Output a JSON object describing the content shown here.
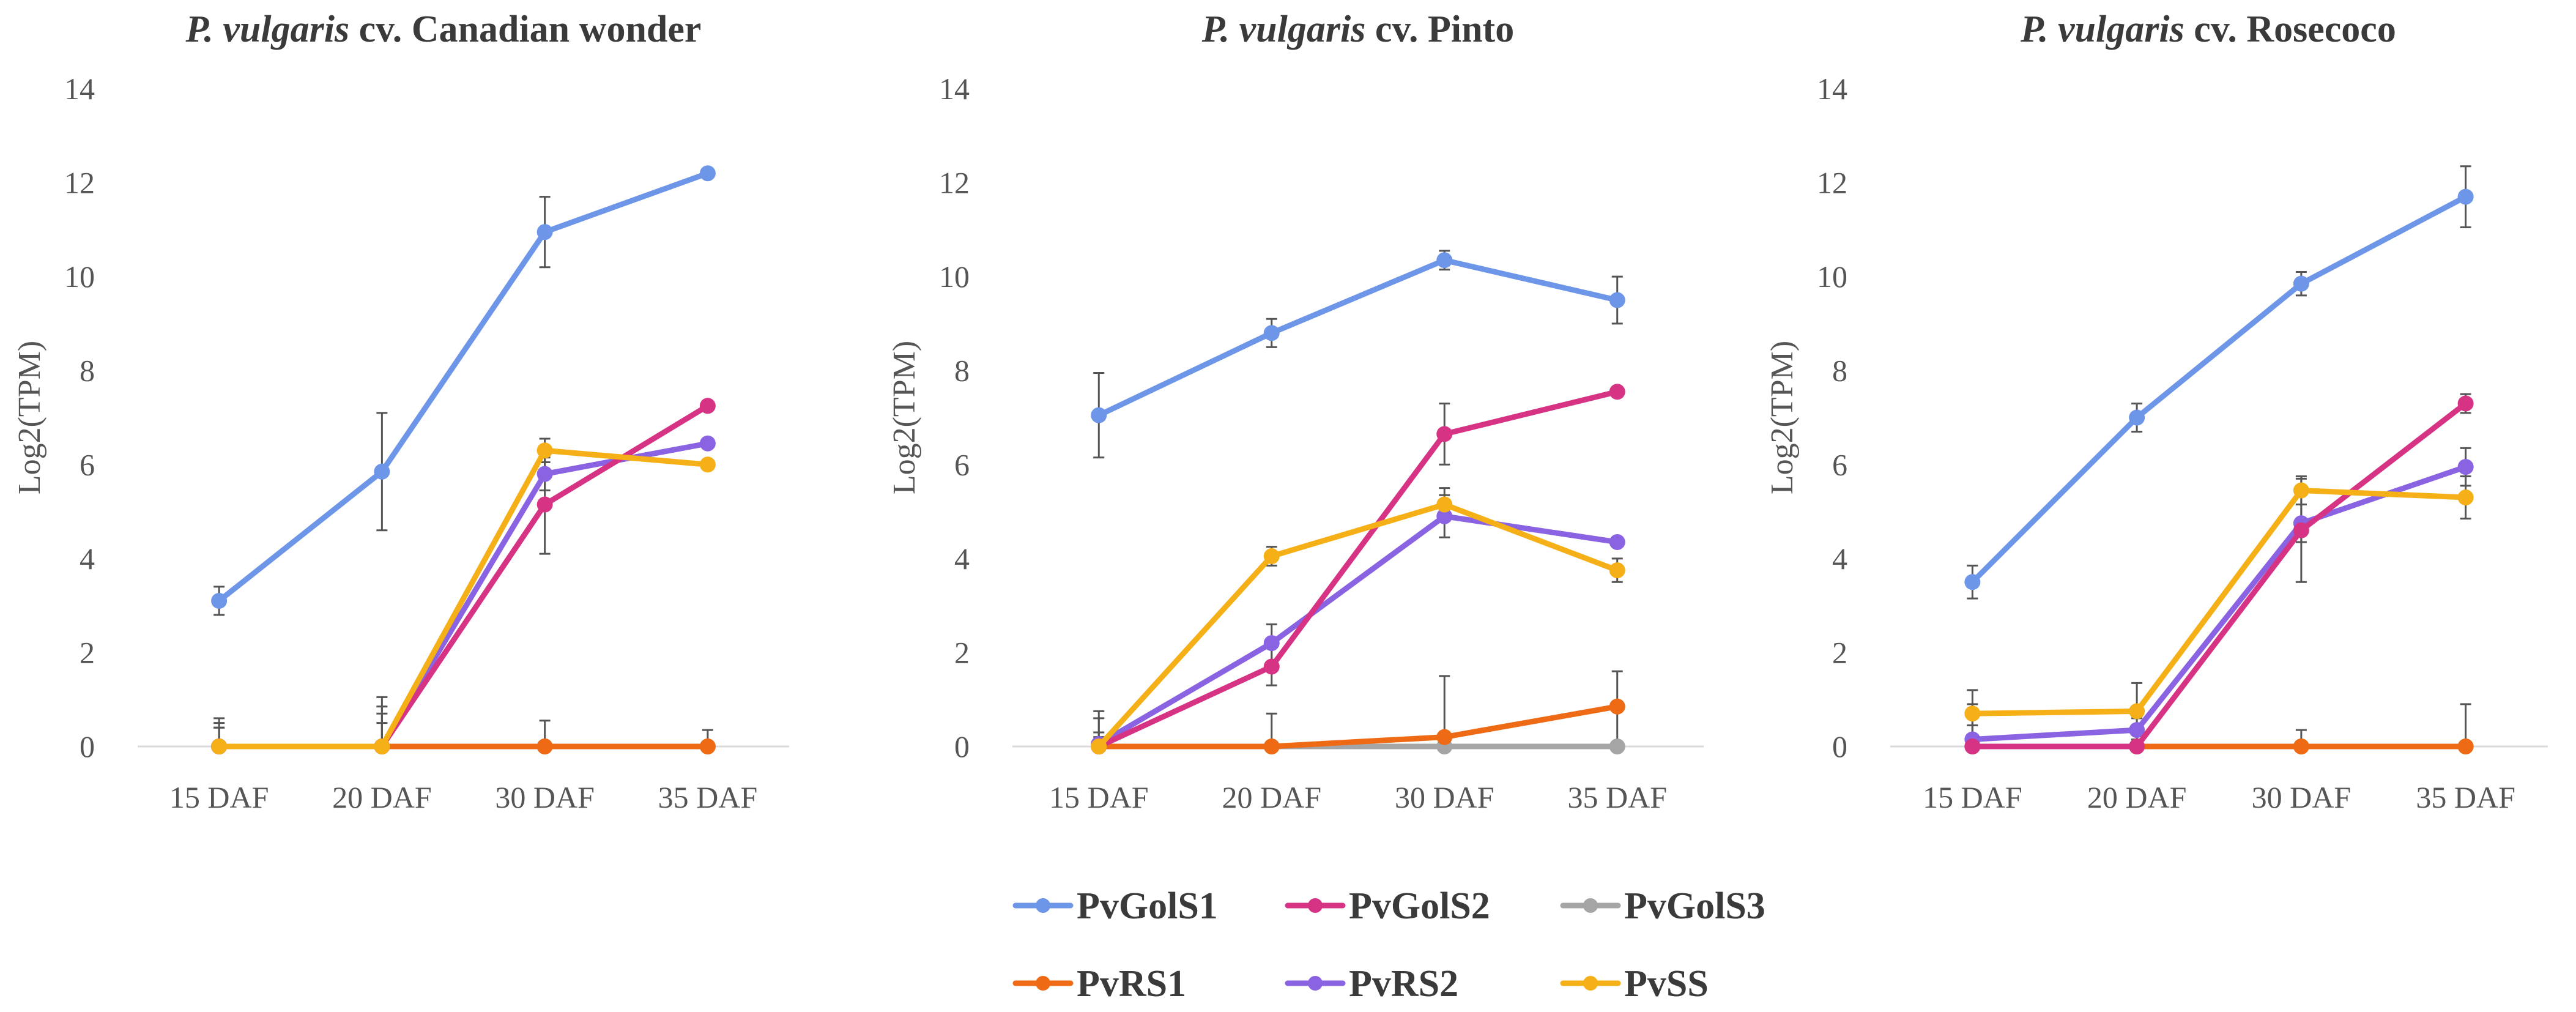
{
  "chart_data": [
    {
      "type": "line",
      "title_italic": "P. vulgaris",
      "title_rest": " cv. Canadian wonder",
      "ylabel": "Log2(TPM)",
      "xlabel": "",
      "categories": [
        "15 DAF",
        "20 DAF",
        "30 DAF",
        "35 DAF"
      ],
      "ylim": [
        0,
        14
      ],
      "yticks": [
        "0",
        "2",
        "4",
        "6",
        "8",
        "10",
        "12",
        "14"
      ],
      "grid": false,
      "series": [
        {
          "name": "PvGolS1",
          "values": [
            3.1,
            5.85,
            10.95,
            12.2
          ],
          "errors": [
            0.3,
            1.25,
            0.75,
            0.05
          ]
        },
        {
          "name": "PvGolS2",
          "values": [
            0,
            0,
            5.15,
            7.25
          ],
          "errors": [
            0.4,
            0.7,
            1.05,
            0.05
          ]
        },
        {
          "name": "PvGolS3",
          "values": [
            0,
            0,
            0,
            0
          ],
          "errors": [
            0,
            0,
            0,
            0
          ]
        },
        {
          "name": "PvRS1",
          "values": [
            0,
            0,
            0,
            0
          ],
          "errors": [
            0.6,
            0.5,
            0.55,
            0.35
          ]
        },
        {
          "name": "PvRS2",
          "values": [
            0,
            0,
            5.8,
            6.45
          ],
          "errors": [
            0.4,
            0.85,
            0.35,
            0.1
          ]
        },
        {
          "name": "PvSS",
          "values": [
            0,
            0,
            6.3,
            6.0
          ],
          "errors": [
            0.5,
            1.05,
            0.25,
            0.1
          ]
        }
      ]
    },
    {
      "type": "line",
      "title_italic": "P. vulgaris",
      "title_rest": " cv. Pinto",
      "ylabel": "Log2(TPM)",
      "xlabel": "",
      "categories": [
        "15 DAF",
        "20 DAF",
        "30 DAF",
        "35 DAF"
      ],
      "ylim": [
        0,
        14
      ],
      "yticks": [
        "0",
        "2",
        "4",
        "6",
        "8",
        "10",
        "12",
        "14"
      ],
      "grid": false,
      "series": [
        {
          "name": "PvGolS1",
          "values": [
            7.05,
            8.8,
            10.35,
            9.5
          ],
          "errors": [
            0.9,
            0.3,
            0.2,
            0.5
          ]
        },
        {
          "name": "PvGolS2",
          "values": [
            0,
            1.7,
            6.65,
            7.55
          ],
          "errors": [
            0.6,
            0.4,
            0.65,
            0.05
          ]
        },
        {
          "name": "PvGolS3",
          "values": [
            0,
            0,
            0,
            0
          ],
          "errors": [
            0,
            0,
            0,
            0
          ]
        },
        {
          "name": "PvRS1",
          "values": [
            0,
            0,
            0.2,
            0.85
          ],
          "errors": [
            0.2,
            0.7,
            1.3,
            0.75
          ]
        },
        {
          "name": "PvRS2",
          "values": [
            0.05,
            2.2,
            4.9,
            4.35
          ],
          "errors": [
            0.7,
            0.4,
            0.45,
            0.05
          ]
        },
        {
          "name": "PvSS",
          "values": [
            0,
            4.05,
            5.15,
            3.75
          ],
          "errors": [
            0.3,
            0.2,
            0.35,
            0.25
          ]
        }
      ]
    },
    {
      "type": "line",
      "title_italic": "P. vulgaris",
      "title_rest": " cv. Rosecoco",
      "ylabel": "Log2(TPM)",
      "xlabel": "",
      "categories": [
        "15 DAF",
        "20 DAF",
        "30 DAF",
        "35 DAF"
      ],
      "ylim": [
        0,
        14
      ],
      "yticks": [
        "0",
        "2",
        "4",
        "6",
        "8",
        "10",
        "12",
        "14"
      ],
      "grid": false,
      "series": [
        {
          "name": "PvGolS1",
          "values": [
            3.5,
            7.0,
            9.85,
            11.7
          ],
          "errors": [
            0.35,
            0.3,
            0.25,
            0.65
          ]
        },
        {
          "name": "PvGolS2",
          "values": [
            0,
            0,
            4.6,
            7.3
          ],
          "errors": [
            0.9,
            0.35,
            1.1,
            0.2
          ]
        },
        {
          "name": "PvGolS3",
          "values": [
            0,
            0,
            0,
            0
          ],
          "errors": [
            0,
            0,
            0,
            0
          ]
        },
        {
          "name": "PvRS1",
          "values": [
            0,
            0,
            0,
            0
          ],
          "errors": [
            0.6,
            0.3,
            0.35,
            0.9
          ]
        },
        {
          "name": "PvRS2",
          "values": [
            0.15,
            0.35,
            4.75,
            5.95
          ],
          "errors": [
            0.3,
            0.25,
            0.4,
            0.4
          ]
        },
        {
          "name": "PvSS",
          "values": [
            0.7,
            0.75,
            5.45,
            5.3
          ],
          "errors": [
            0.5,
            0.6,
            0.3,
            0.45
          ]
        }
      ]
    }
  ],
  "legend": {
    "placement": "bottom-center",
    "rows": [
      [
        "PvGolS1",
        "PvGolS2",
        "PvGolS3"
      ],
      [
        "PvRS1",
        "PvRS2",
        "PvSS"
      ]
    ]
  },
  "colors": {
    "PvGolS1": "#6e96e8",
    "PvGolS2": "#d63384",
    "PvGolS3": "#a5a5a5",
    "PvRS1": "#ee6a14",
    "PvRS2": "#8a63e3",
    "PvSS": "#f5b018",
    "axis": "#d9d9d9",
    "errorbar": "#555555"
  }
}
